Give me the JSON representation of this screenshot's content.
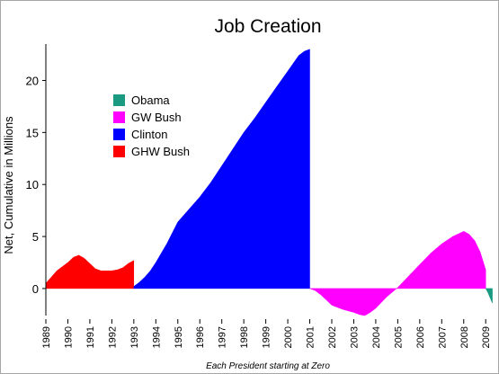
{
  "chart_data": {
    "type": "area",
    "title": "Job Creation",
    "ylabel": "Net, Cumulative in Millions",
    "xlabel": "Each President starting at Zero",
    "ylim": [
      -2.6,
      23.5
    ],
    "xlim": [
      1989,
      2009.4
    ],
    "y_ticks": [
      0,
      5,
      10,
      15,
      20
    ],
    "x_ticks": [
      "1989",
      "1990",
      "1991",
      "1992",
      "1993",
      "1994",
      "1995",
      "1996",
      "1997",
      "1998",
      "1999",
      "2000",
      "2001",
      "2002",
      "2003",
      "2004",
      "2005",
      "2006",
      "2007",
      "2008",
      "2009"
    ],
    "grid": false,
    "legend_position": "upper-left",
    "series": [
      {
        "name": "GHW Bush",
        "color": "#ff0000",
        "x": [
          1989.0,
          1989.25,
          1989.5,
          1989.75,
          1990.0,
          1990.25,
          1990.5,
          1990.75,
          1991.0,
          1991.25,
          1991.5,
          1991.75,
          1992.0,
          1992.25,
          1992.5,
          1992.75,
          1993.0
        ],
        "values": [
          0.5,
          1.1,
          1.7,
          2.1,
          2.5,
          3.0,
          3.2,
          2.9,
          2.4,
          1.9,
          1.7,
          1.7,
          1.7,
          1.8,
          2.0,
          2.4,
          2.7
        ]
      },
      {
        "name": "Clinton",
        "color": "#0000ff",
        "x": [
          1993.0,
          1993.25,
          1993.5,
          1993.75,
          1994.0,
          1994.5,
          1995.0,
          1995.5,
          1996.0,
          1996.5,
          1997.0,
          1997.5,
          1998.0,
          1998.5,
          1999.0,
          1999.5,
          2000.0,
          2000.5,
          2000.75,
          2001.0
        ],
        "values": [
          0.2,
          0.6,
          1.1,
          1.7,
          2.5,
          4.3,
          6.4,
          7.6,
          8.8,
          10.2,
          11.8,
          13.4,
          15.0,
          16.4,
          17.9,
          19.4,
          20.9,
          22.4,
          22.8,
          23.0
        ]
      },
      {
        "name": "GW Bush",
        "color": "#ff00ff",
        "x": [
          2001.0,
          2001.25,
          2001.5,
          2001.75,
          2002.0,
          2002.5,
          2003.0,
          2003.25,
          2003.5,
          2003.75,
          2004.0,
          2004.5,
          2005.0,
          2005.5,
          2006.0,
          2006.5,
          2007.0,
          2007.5,
          2008.0,
          2008.25,
          2008.5,
          2008.75,
          2009.0
        ],
        "values": [
          0.0,
          -0.2,
          -0.6,
          -1.1,
          -1.6,
          -2.0,
          -2.3,
          -2.5,
          -2.6,
          -2.3,
          -1.9,
          -0.8,
          0.1,
          1.2,
          2.3,
          3.4,
          4.3,
          5.0,
          5.5,
          5.2,
          4.6,
          3.5,
          1.8
        ]
      },
      {
        "name": "Obama",
        "color": "#1a9a80",
        "x": [
          2009.0,
          2009.1,
          2009.2,
          2009.3
        ],
        "values": [
          0.0,
          -0.4,
          -0.9,
          -1.4
        ]
      }
    ],
    "legend_order": [
      "Obama",
      "GW Bush",
      "Clinton",
      "GHW Bush"
    ]
  }
}
